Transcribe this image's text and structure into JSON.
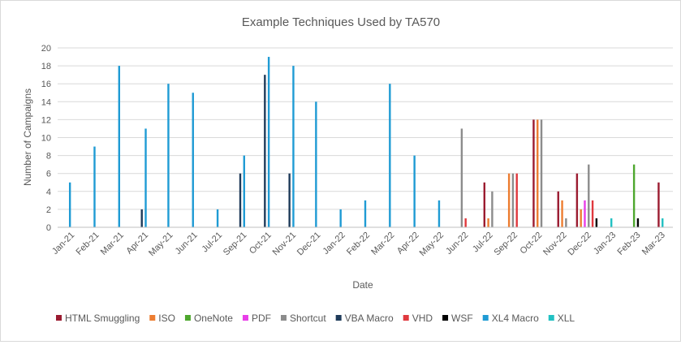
{
  "chart_data": {
    "type": "bar",
    "title": "Example Techniques Used by TA570",
    "xlabel": "Date",
    "ylabel": "Number of Campaigns",
    "ylim": [
      0,
      20
    ],
    "yticks": [
      0,
      2,
      4,
      6,
      8,
      10,
      12,
      14,
      16,
      18,
      20
    ],
    "grid": true,
    "legend_position": "bottom",
    "categories": [
      "Jan-21",
      "Feb-21",
      "Mar-21",
      "Apr-21",
      "May-21",
      "Jun-21",
      "Jul-21",
      "Sep-21",
      "Oct-21",
      "Nov-21",
      "Dec-21",
      "Jan-22",
      "Feb-22",
      "Mar-22",
      "Apr-22",
      "May-22",
      "Jun-22",
      "Jul-22",
      "Sep-22",
      "Oct-22",
      "Nov-22",
      "Dec-22",
      "Jan-23",
      "Feb-23",
      "Mar-23"
    ],
    "series": [
      {
        "name": "HTML Smuggling",
        "color": "#9b1b30",
        "values": [
          null,
          null,
          null,
          null,
          null,
          null,
          null,
          null,
          null,
          null,
          null,
          null,
          null,
          null,
          null,
          null,
          null,
          5,
          null,
          12,
          4,
          6,
          null,
          null,
          5
        ]
      },
      {
        "name": "ISO",
        "color": "#ed7d31",
        "values": [
          null,
          null,
          null,
          null,
          null,
          null,
          null,
          null,
          null,
          null,
          null,
          null,
          null,
          null,
          null,
          null,
          null,
          1,
          6,
          12,
          3,
          2,
          null,
          null,
          null
        ]
      },
      {
        "name": "OneNote",
        "color": "#4ea72e",
        "values": [
          null,
          null,
          null,
          null,
          null,
          null,
          null,
          null,
          null,
          null,
          null,
          null,
          null,
          null,
          null,
          null,
          null,
          null,
          null,
          null,
          null,
          null,
          null,
          7,
          null
        ]
      },
      {
        "name": "PDF",
        "color": "#e83ee8",
        "values": [
          null,
          null,
          null,
          null,
          null,
          null,
          null,
          null,
          null,
          null,
          null,
          null,
          null,
          null,
          null,
          null,
          null,
          null,
          null,
          null,
          null,
          3,
          null,
          null,
          null
        ]
      },
      {
        "name": "Shortcut",
        "color": "#8c8c8c",
        "values": [
          null,
          null,
          null,
          null,
          null,
          null,
          null,
          null,
          null,
          null,
          null,
          null,
          null,
          null,
          null,
          null,
          11,
          4,
          6,
          12,
          1,
          7,
          null,
          null,
          null
        ]
      },
      {
        "name": "VBA Macro",
        "color": "#1f3b5a",
        "values": [
          null,
          null,
          null,
          2,
          null,
          null,
          null,
          6,
          17,
          6,
          null,
          null,
          null,
          null,
          null,
          null,
          null,
          null,
          null,
          null,
          null,
          null,
          null,
          null,
          null
        ]
      },
      {
        "name": "VHD",
        "color": "#e0393e",
        "values": [
          null,
          null,
          null,
          null,
          null,
          null,
          null,
          null,
          null,
          null,
          null,
          null,
          null,
          null,
          null,
          null,
          1,
          null,
          6,
          null,
          null,
          3,
          null,
          null,
          null
        ]
      },
      {
        "name": "WSF",
        "color": "#000000",
        "values": [
          null,
          null,
          null,
          null,
          null,
          null,
          null,
          null,
          null,
          null,
          null,
          null,
          null,
          null,
          null,
          null,
          null,
          null,
          null,
          null,
          null,
          1,
          null,
          1,
          null
        ]
      },
      {
        "name": "XL4 Macro",
        "color": "#1f9bd4",
        "values": [
          5,
          9,
          18,
          11,
          16,
          15,
          2,
          8,
          19,
          18,
          14,
          2,
          3,
          16,
          8,
          3,
          null,
          null,
          null,
          null,
          null,
          null,
          null,
          null,
          null
        ]
      },
      {
        "name": "XLL",
        "color": "#22c1c3",
        "values": [
          null,
          null,
          null,
          null,
          null,
          null,
          null,
          null,
          null,
          null,
          null,
          null,
          null,
          null,
          null,
          null,
          null,
          null,
          null,
          null,
          null,
          null,
          1,
          null,
          1
        ]
      }
    ]
  }
}
